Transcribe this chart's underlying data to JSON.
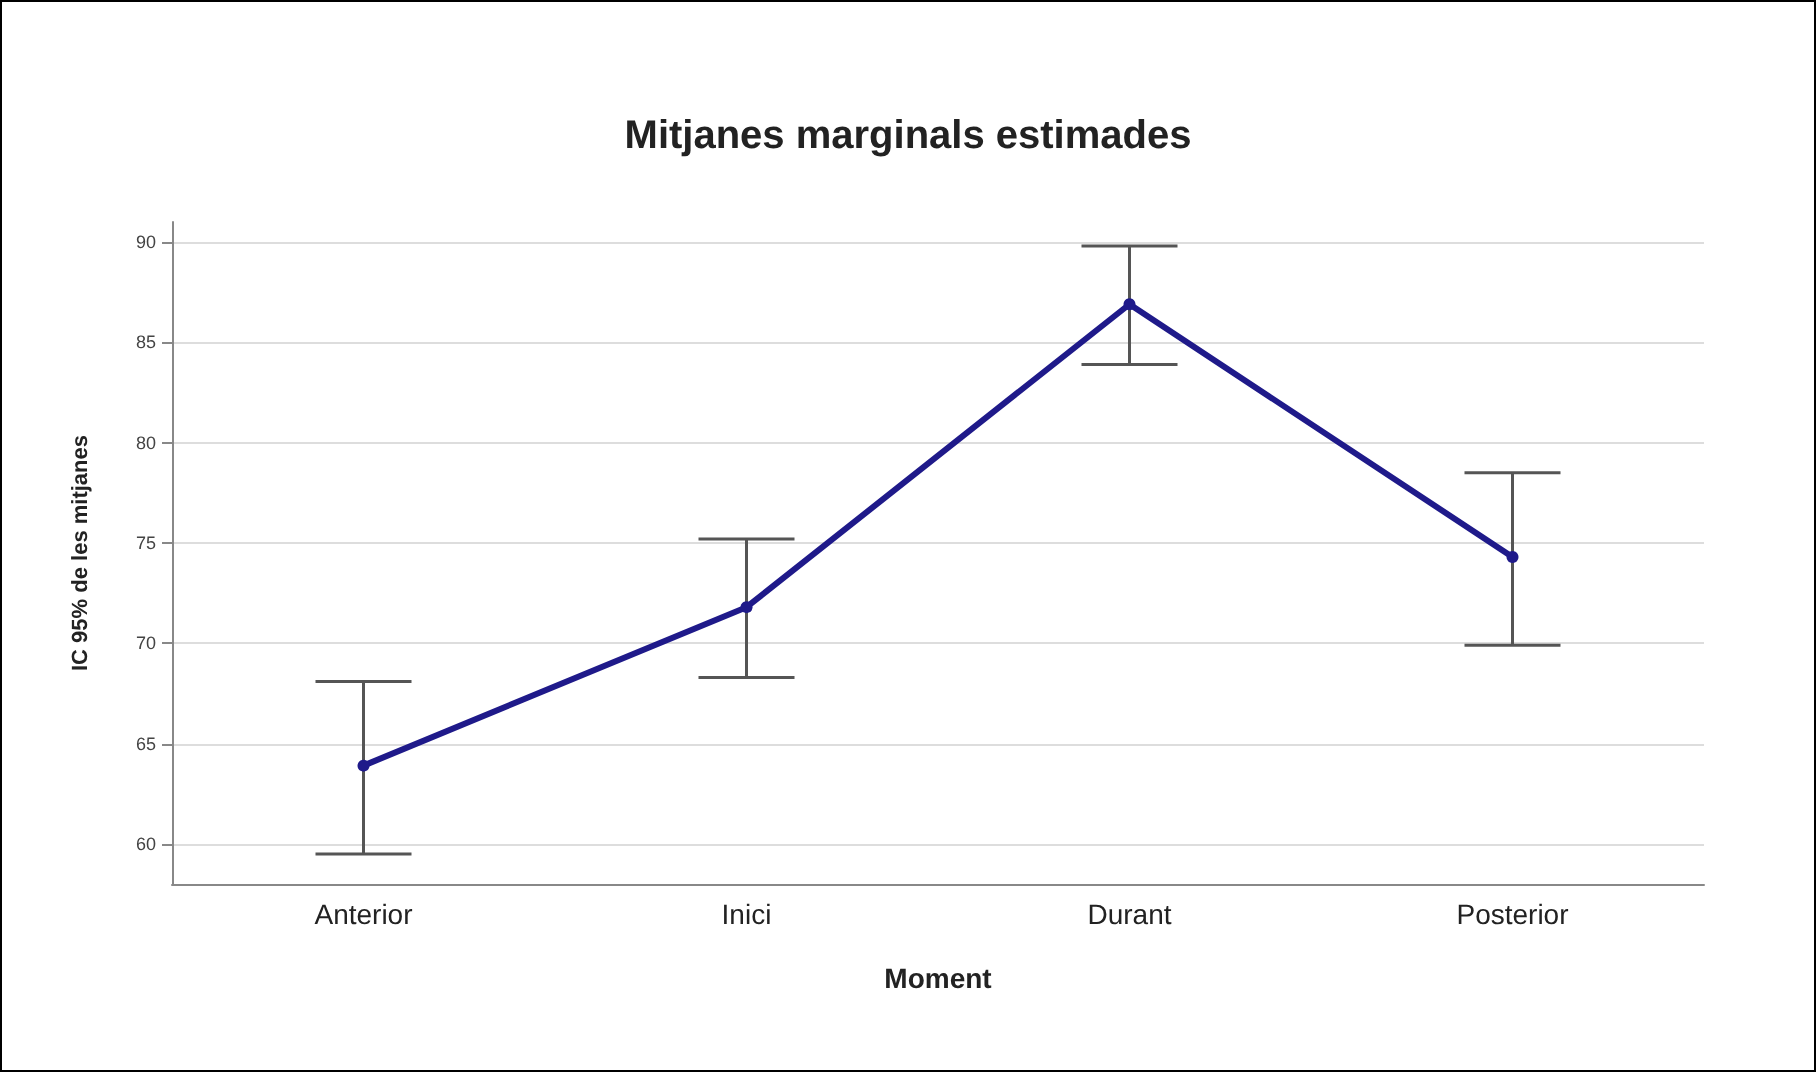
{
  "chart_data": {
    "type": "line",
    "title": "Mitjanes marginals estimades",
    "xlabel": "Moment",
    "ylabel": "IC 95% de les mitjanes",
    "categories": [
      "Anterior",
      "Inici",
      "Durant",
      "Posterior"
    ],
    "series": [
      {
        "color": "#1f1a8a",
        "values": [
          63.9,
          71.8,
          86.9,
          74.3
        ],
        "errors": [
          [
            59.5,
            68.1
          ],
          [
            68.3,
            75.2
          ],
          [
            83.9,
            89.8
          ],
          [
            69.9,
            78.5
          ]
        ]
      }
    ],
    "ylim": [
      58,
      91
    ],
    "yticks": [
      60,
      65,
      70,
      75,
      80,
      85,
      90
    ],
    "grid": "y",
    "legend": false,
    "marker": "circle",
    "line_style": "solid"
  }
}
